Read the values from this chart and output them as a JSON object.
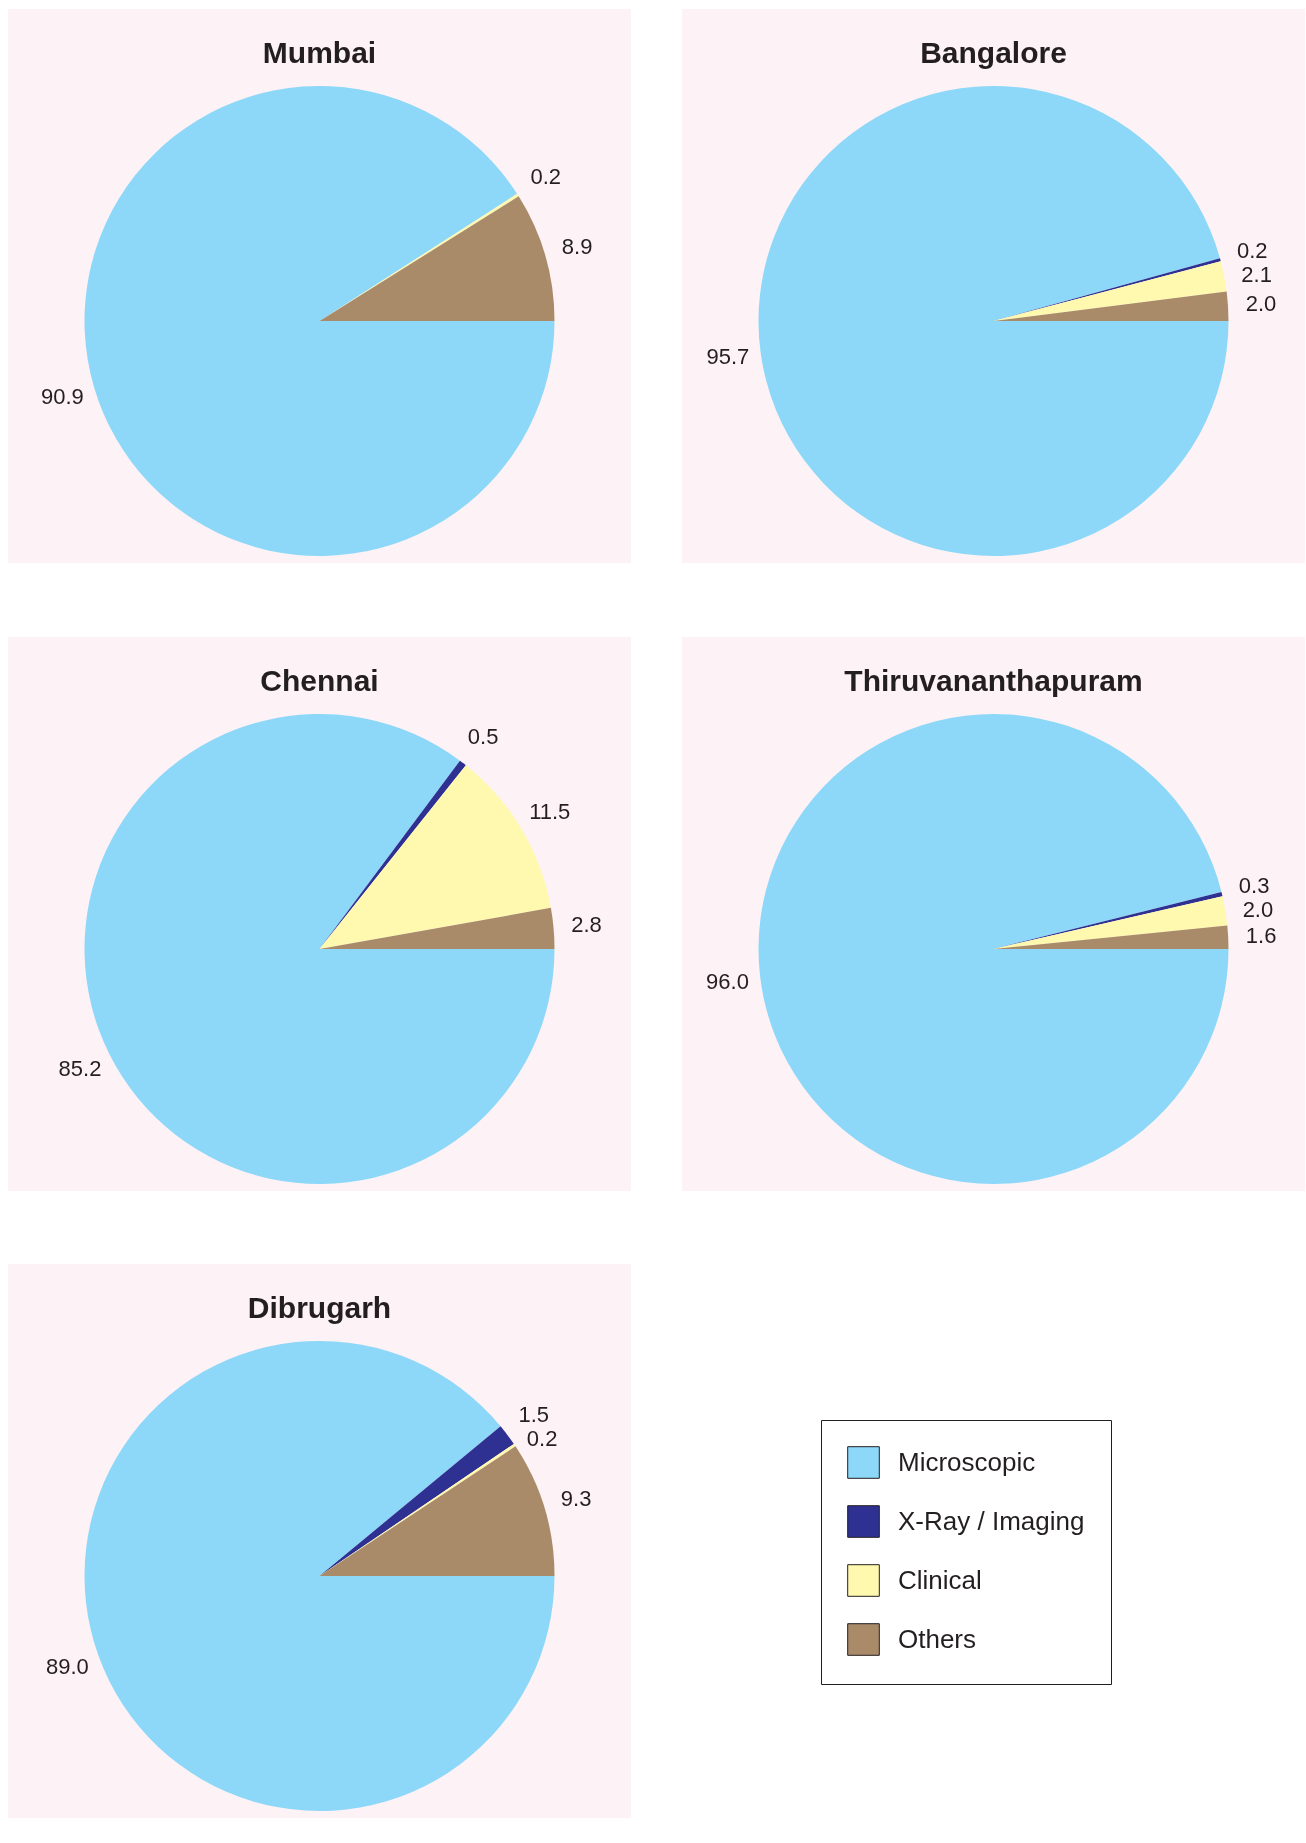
{
  "chart_data": [
    {
      "type": "pie",
      "title": "Mumbai",
      "categories": [
        null,
        null,
        null,
        null
      ],
      "values": [
        90.9,
        null,
        0.2,
        8.9
      ],
      "value_labels": [
        "90.9",
        null,
        "0.2",
        "8.9"
      ],
      "colors": [
        "#8dd8f8",
        "#2e3192",
        "#fff9b0",
        "#a98b69"
      ]
    },
    {
      "type": "pie",
      "title": "Bangalore",
      "categories": [
        null,
        null,
        null,
        null
      ],
      "values": [
        95.7,
        0.2,
        2.1,
        2.0
      ],
      "value_labels": [
        "95.7",
        "0.2",
        "2.1",
        "2.0"
      ],
      "colors": [
        "#8dd8f8",
        "#2e3192",
        "#fff9b0",
        "#a98b69"
      ]
    },
    {
      "type": "pie",
      "title": "Chennai",
      "categories": [
        null,
        null,
        null,
        null
      ],
      "values": [
        85.2,
        0.5,
        11.5,
        2.8
      ],
      "value_labels": [
        "85.2",
        "0.5",
        "11.5",
        "2.8"
      ],
      "colors": [
        "#8dd8f8",
        "#2e3192",
        "#fff9b0",
        "#a98b69"
      ]
    },
    {
      "type": "pie",
      "title": "Thiruvananthapuram",
      "categories": [
        null,
        null,
        null,
        null
      ],
      "values": [
        96.0,
        0.3,
        2.0,
        1.6
      ],
      "value_labels": [
        "96.0",
        "0.3",
        "2.0",
        "1.6"
      ],
      "colors": [
        "#8dd8f8",
        "#2e3192",
        "#fff9b0",
        "#a98b69"
      ]
    },
    {
      "type": "pie",
      "title": "Dibrugarh",
      "categories": [
        "Microscopic",
        "X-Ray / Imaging",
        "Clinical",
        "Others"
      ],
      "values": [
        89.0,
        1.5,
        0.2,
        9.3
      ],
      "value_labels": [
        "89.0",
        "1.5",
        "0.2",
        "9.3"
      ],
      "colors": [
        "#8dd8f8",
        "#2e3192",
        "#fff9b0",
        "#a98b69"
      ],
      "legend": "right"
    }
  ]
}
